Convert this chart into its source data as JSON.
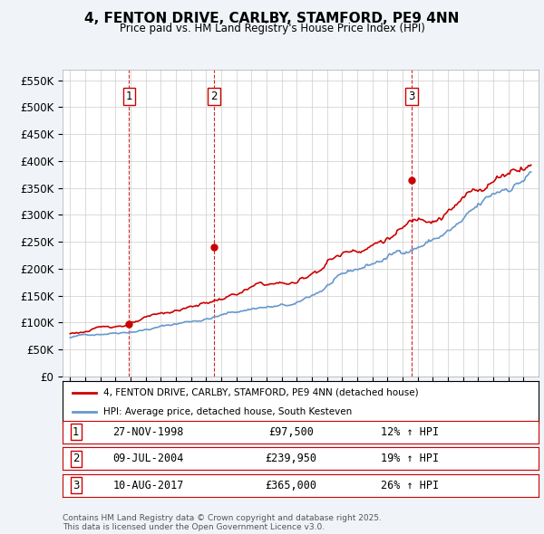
{
  "title": "4, FENTON DRIVE, CARLBY, STAMFORD, PE9 4NN",
  "subtitle": "Price paid vs. HM Land Registry's House Price Index (HPI)",
  "ylim": [
    0,
    570000
  ],
  "yticks": [
    0,
    50000,
    100000,
    150000,
    200000,
    250000,
    300000,
    350000,
    400000,
    450000,
    500000,
    550000
  ],
  "ytick_labels": [
    "£0",
    "£50K",
    "£100K",
    "£150K",
    "£200K",
    "£250K",
    "£300K",
    "£350K",
    "£400K",
    "£450K",
    "£500K",
    "£550K"
  ],
  "sale_color": "#cc0000",
  "hpi_color": "#6699cc",
  "plot_bg_color": "#ffffff",
  "grid_color": "#cccccc",
  "dashed_line_color": "#cc0000",
  "transaction_lines": [
    {
      "x": 1998.9,
      "label": "1",
      "value": 97500
    },
    {
      "x": 2004.52,
      "label": "2",
      "value": 239950
    },
    {
      "x": 2017.6,
      "label": "3",
      "value": 365000
    }
  ],
  "legend_entries": [
    {
      "label": "4, FENTON DRIVE, CARLBY, STAMFORD, PE9 4NN (detached house)",
      "color": "#cc0000"
    },
    {
      "label": "HPI: Average price, detached house, South Kesteven",
      "color": "#6699cc"
    }
  ],
  "table_rows": [
    {
      "num": "1",
      "date": "27-NOV-1998",
      "price": "£97,500",
      "hpi": "12% ↑ HPI"
    },
    {
      "num": "2",
      "date": "09-JUL-2004",
      "price": "£239,950",
      "hpi": "19% ↑ HPI"
    },
    {
      "num": "3",
      "date": "10-AUG-2017",
      "price": "£365,000",
      "hpi": "26% ↑ HPI"
    }
  ],
  "footnote": "Contains HM Land Registry data © Crown copyright and database right 2025.\nThis data is licensed under the Open Government Licence v3.0.",
  "xmin": 1994.5,
  "xmax": 2026.0
}
